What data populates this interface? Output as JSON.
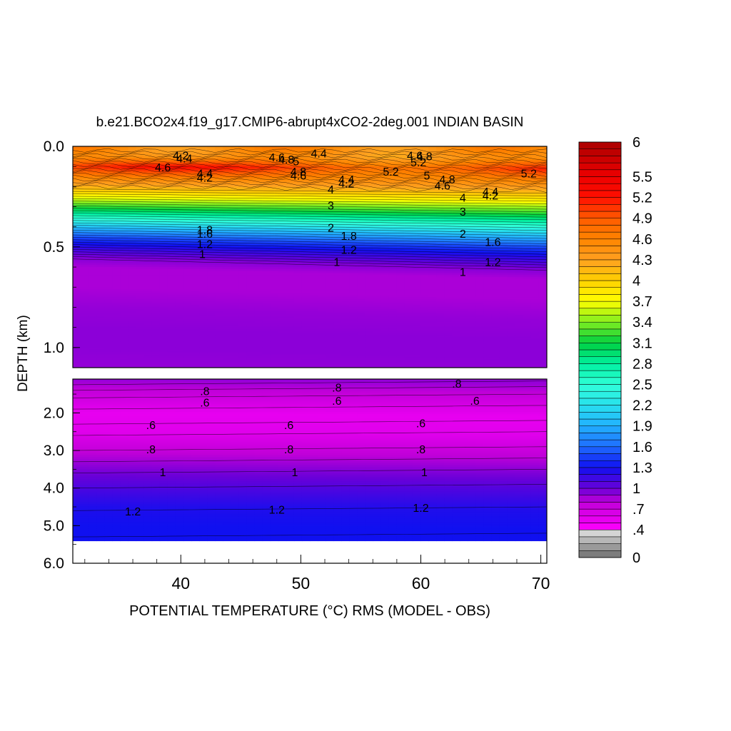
{
  "chart_data": {
    "type": "contour",
    "title": "b.e21.BCO2x4.f19_g17.CMIP6-abrupt4xCO2-2deg.001 INDIAN BASIN",
    "xlabel": "POTENTIAL TEMPERATURE (°C) RMS (MODEL - OBS)",
    "ylabel": "DEPTH (km)",
    "x_ticks": [
      "40",
      "50",
      "60",
      "70"
    ],
    "x_tick_values": [
      40,
      50,
      60,
      70
    ],
    "xlim": [
      31,
      70.5
    ],
    "upper_panel": {
      "ylim": [
        0,
        1.1
      ],
      "y_ticks": [
        "0.0",
        "0.5",
        "1.0"
      ],
      "y_tick_values": [
        0,
        0.5,
        1.0
      ]
    },
    "lower_panel": {
      "ylim": [
        1.1,
        6.0
      ],
      "y_ticks": [
        "2.0",
        "3.0",
        "4.0",
        "5.0",
        "6.0"
      ],
      "y_tick_values": [
        2,
        3,
        4,
        5,
        6
      ]
    },
    "colorbar": {
      "min": 0,
      "max": 6,
      "step": 0.1,
      "labels": [
        "0",
        ".4",
        ".7",
        "1",
        "1.3",
        "1.6",
        "1.9",
        "2.2",
        "2.5",
        "2.8",
        "3.1",
        "3.4",
        "3.7",
        "4",
        "4.3",
        "4.6",
        "4.9",
        "5.2",
        "5.5",
        "6"
      ],
      "label_values": [
        0,
        0.4,
        0.7,
        1,
        1.3,
        1.6,
        1.9,
        2.2,
        2.5,
        2.8,
        3.1,
        3.4,
        3.7,
        4,
        4.3,
        4.6,
        4.9,
        5.2,
        5.5,
        6
      ]
    },
    "upper_profile": {
      "depths": [
        0.0,
        0.05,
        0.1,
        0.15,
        0.2,
        0.25,
        0.3,
        0.35,
        0.4,
        0.45,
        0.5,
        0.55,
        0.6,
        0.7,
        0.8,
        0.9,
        1.0,
        1.1
      ],
      "values": [
        4.5,
        4.4,
        5.0,
        4.6,
        4.2,
        3.7,
        3.2,
        2.6,
        2.0,
        1.5,
        1.2,
        0.95,
        0.85,
        0.85,
        0.9,
        0.92,
        0.92,
        0.9
      ]
    },
    "lower_profile": {
      "depths": [
        1.1,
        1.5,
        2.0,
        2.5,
        3.0,
        3.5,
        4.0,
        4.5,
        5.0,
        5.4
      ],
      "values": [
        0.9,
        0.75,
        0.55,
        0.6,
        0.78,
        0.95,
        1.1,
        1.25,
        1.3,
        1.3
      ]
    },
    "contour_labels": [
      {
        "text": "4.2",
        "x": 40.0,
        "y": 0.05
      },
      {
        "text": "4.4",
        "x": 40.3,
        "y": 0.065
      },
      {
        "text": "4.6",
        "x": 38.5,
        "y": 0.11
      },
      {
        "text": "4.6",
        "x": 48.0,
        "y": 0.06
      },
      {
        "text": "4.8",
        "x": 48.8,
        "y": 0.07
      },
      {
        "text": "5",
        "x": 49.6,
        "y": 0.08
      },
      {
        "text": "4.4",
        "x": 51.5,
        "y": 0.04
      },
      {
        "text": "4.8",
        "x": 49.8,
        "y": 0.13
      },
      {
        "text": "4.6",
        "x": 49.8,
        "y": 0.15
      },
      {
        "text": "5.2",
        "x": 57.5,
        "y": 0.13
      },
      {
        "text": "4.6",
        "x": 59.5,
        "y": 0.05
      },
      {
        "text": "4.8",
        "x": 60.3,
        "y": 0.055
      },
      {
        "text": "5.2",
        "x": 59.8,
        "y": 0.085
      },
      {
        "text": "5",
        "x": 60.5,
        "y": 0.15
      },
      {
        "text": "4.8",
        "x": 62.2,
        "y": 0.17
      },
      {
        "text": "4.6",
        "x": 61.8,
        "y": 0.2
      },
      {
        "text": "5.2",
        "x": 69.0,
        "y": 0.14
      },
      {
        "text": "4.4",
        "x": 42.0,
        "y": 0.14
      },
      {
        "text": "4.2",
        "x": 42.0,
        "y": 0.16
      },
      {
        "text": "4.4",
        "x": 53.8,
        "y": 0.17
      },
      {
        "text": "4.2",
        "x": 53.8,
        "y": 0.19
      },
      {
        "text": "4",
        "x": 52.5,
        "y": 0.22
      },
      {
        "text": "3",
        "x": 52.5,
        "y": 0.3
      },
      {
        "text": "2",
        "x": 52.5,
        "y": 0.41
      },
      {
        "text": "4",
        "x": 63.5,
        "y": 0.26
      },
      {
        "text": "3",
        "x": 63.5,
        "y": 0.33
      },
      {
        "text": "2",
        "x": 63.5,
        "y": 0.44
      },
      {
        "text": "4.4",
        "x": 65.8,
        "y": 0.23
      },
      {
        "text": "4.2",
        "x": 65.8,
        "y": 0.25
      },
      {
        "text": "1.8",
        "x": 42.0,
        "y": 0.42
      },
      {
        "text": "1.6",
        "x": 42.0,
        "y": 0.44
      },
      {
        "text": "1.2",
        "x": 42.0,
        "y": 0.49
      },
      {
        "text": "1",
        "x": 41.8,
        "y": 0.54
      },
      {
        "text": "1.8",
        "x": 54.0,
        "y": 0.45
      },
      {
        "text": "1.2",
        "x": 54.0,
        "y": 0.52
      },
      {
        "text": "1",
        "x": 53.0,
        "y": 0.58
      },
      {
        "text": "1.6",
        "x": 66.0,
        "y": 0.48
      },
      {
        "text": "1.2",
        "x": 66.0,
        "y": 0.58
      },
      {
        "text": "1",
        "x": 63.5,
        "y": 0.63
      },
      {
        "text": ".8",
        "x": 42.0,
        "y": 1.45
      },
      {
        "text": ".6",
        "x": 42.0,
        "y": 1.75
      },
      {
        "text": ".8",
        "x": 53.0,
        "y": 1.35
      },
      {
        "text": ".6",
        "x": 53.0,
        "y": 1.7
      },
      {
        "text": ".8",
        "x": 63.0,
        "y": 1.25
      },
      {
        "text": ".6",
        "x": 64.5,
        "y": 1.7
      },
      {
        "text": ".6",
        "x": 37.5,
        "y": 2.35
      },
      {
        "text": ".6",
        "x": 49.0,
        "y": 2.35
      },
      {
        "text": ".6",
        "x": 60.0,
        "y": 2.3
      },
      {
        "text": ".8",
        "x": 37.5,
        "y": 3.0
      },
      {
        "text": ".8",
        "x": 49.0,
        "y": 3.0
      },
      {
        "text": ".8",
        "x": 60.0,
        "y": 3.0
      },
      {
        "text": "1",
        "x": 38.5,
        "y": 3.6
      },
      {
        "text": "1",
        "x": 49.5,
        "y": 3.6
      },
      {
        "text": "1",
        "x": 60.3,
        "y": 3.6
      },
      {
        "text": "1.2",
        "x": 36.0,
        "y": 4.65
      },
      {
        "text": "1.2",
        "x": 48.0,
        "y": 4.6
      },
      {
        "text": "1.2",
        "x": 60.0,
        "y": 4.55
      }
    ]
  }
}
